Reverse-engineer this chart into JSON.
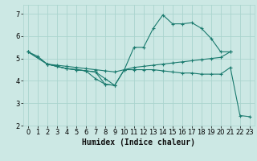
{
  "background_color": "#cce8e4",
  "grid_color": "#aad4ce",
  "line_color": "#1a7a6e",
  "xlabel": "Humidex (Indice chaleur)",
  "xlim": [
    -0.5,
    23.5
  ],
  "ylim": [
    2,
    7.4
  ],
  "yticks": [
    2,
    3,
    4,
    5,
    6,
    7
  ],
  "xticks": [
    0,
    1,
    2,
    3,
    4,
    5,
    6,
    7,
    8,
    9,
    10,
    11,
    12,
    13,
    14,
    15,
    16,
    17,
    18,
    19,
    20,
    21,
    22,
    23
  ],
  "line1_x": [
    0,
    1,
    2,
    3,
    4,
    5,
    6,
    7,
    8,
    9,
    10,
    11,
    12,
    13,
    14,
    15,
    16,
    17,
    18,
    19,
    20,
    21
  ],
  "line1_y": [
    5.3,
    5.1,
    4.75,
    4.65,
    4.55,
    4.5,
    4.45,
    4.4,
    4.1,
    3.8,
    4.5,
    5.5,
    5.5,
    6.35,
    6.95,
    6.55,
    6.55,
    6.6,
    6.35,
    5.9,
    5.3,
    5.3
  ],
  "line2_x": [
    0,
    2,
    3,
    4,
    5,
    6,
    7,
    8,
    9,
    10,
    11,
    12,
    13,
    14,
    15,
    16,
    17,
    18,
    19,
    20,
    21
  ],
  "line2_y": [
    5.3,
    4.75,
    4.7,
    4.65,
    4.6,
    4.55,
    4.5,
    4.45,
    4.4,
    4.5,
    4.6,
    4.65,
    4.7,
    4.75,
    4.8,
    4.85,
    4.9,
    4.95,
    5.0,
    5.05,
    5.3
  ],
  "line3_x": [
    0,
    2,
    3,
    4,
    5,
    6,
    7,
    8,
    9,
    10,
    11,
    12,
    13,
    14,
    15,
    16,
    17,
    18,
    19,
    20,
    21,
    22,
    23
  ],
  "line3_y": [
    5.3,
    4.75,
    4.65,
    4.55,
    4.5,
    4.45,
    4.4,
    3.85,
    3.8,
    4.5,
    4.5,
    4.5,
    4.5,
    4.45,
    4.4,
    4.35,
    4.35,
    4.3,
    4.3,
    4.3,
    4.6,
    2.45,
    2.4
  ],
  "line4_x": [
    2,
    3,
    4,
    5,
    6,
    7,
    8,
    9
  ],
  "line4_y": [
    4.75,
    4.65,
    4.55,
    4.5,
    4.45,
    4.1,
    3.85,
    3.8
  ],
  "xlabel_fontsize": 7,
  "tick_fontsize": 6
}
